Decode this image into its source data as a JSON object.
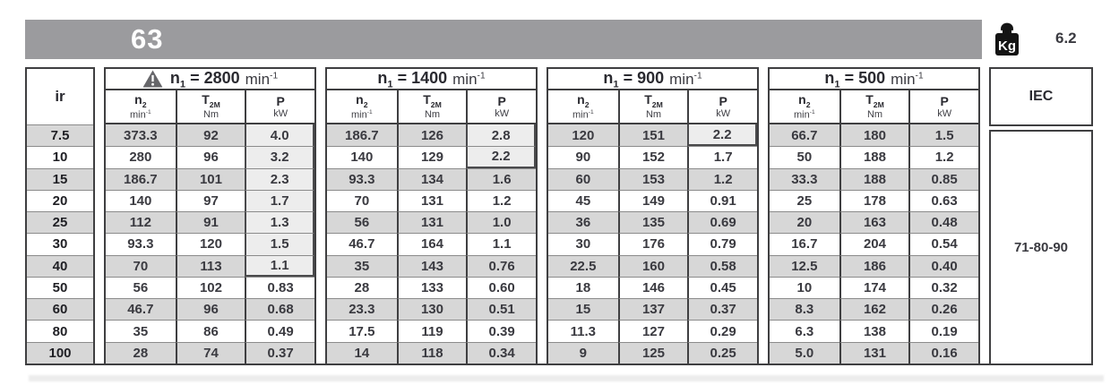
{
  "banner": {
    "size_label": "63",
    "weight_icon_label": "Kg",
    "weight_value": "6.2"
  },
  "table": {
    "ir_header": "ir",
    "ir_values": [
      "7.5",
      "10",
      "15",
      "20",
      "25",
      "30",
      "40",
      "50",
      "60",
      "80",
      "100"
    ],
    "column_headers": [
      {
        "base": "n",
        "sub": "2",
        "unit": "min",
        "unit_exp": "-1"
      },
      {
        "base": "T",
        "sub": "2M",
        "unit": "Nm",
        "unit_exp": ""
      },
      {
        "base": "P",
        "sub": "",
        "unit": "kW",
        "unit_exp": ""
      }
    ],
    "sections": [
      {
        "n1_base": "n",
        "n1_sub": "1",
        "eq": "=",
        "speed": "2800",
        "unit": "min",
        "unit_exp": "-1",
        "warning": true,
        "n2": [
          "373.3",
          "280",
          "186.7",
          "140",
          "112",
          "93.3",
          "70",
          "56",
          "46.7",
          "35",
          "28"
        ],
        "t2m": [
          "92",
          "96",
          "101",
          "97",
          "91",
          "120",
          "113",
          "102",
          "96",
          "86",
          "74"
        ],
        "p": [
          "4.0",
          "3.2",
          "2.3",
          "1.7",
          "1.3",
          "1.5",
          "1.1",
          "0.83",
          "0.68",
          "0.49",
          "0.37"
        ],
        "p_highlight_rows": 7
      },
      {
        "n1_base": "n",
        "n1_sub": "1",
        "eq": "=",
        "speed": "1400",
        "unit": "min",
        "unit_exp": "-1",
        "warning": false,
        "n2": [
          "186.7",
          "140",
          "93.3",
          "70",
          "56",
          "46.7",
          "35",
          "28",
          "23.3",
          "17.5",
          "14"
        ],
        "t2m": [
          "126",
          "129",
          "134",
          "131",
          "131",
          "164",
          "143",
          "133",
          "130",
          "119",
          "118"
        ],
        "p": [
          "2.8",
          "2.2",
          "1.6",
          "1.2",
          "1.0",
          "1.1",
          "0.76",
          "0.60",
          "0.51",
          "0.39",
          "0.34"
        ],
        "p_highlight_rows": 2
      },
      {
        "n1_base": "n",
        "n1_sub": "1",
        "eq": "=",
        "speed": "900",
        "unit": "min",
        "unit_exp": "-1",
        "warning": false,
        "n2": [
          "120",
          "90",
          "60",
          "45",
          "36",
          "30",
          "22.5",
          "18",
          "15",
          "11.3",
          "9"
        ],
        "t2m": [
          "151",
          "152",
          "153",
          "149",
          "135",
          "176",
          "160",
          "146",
          "137",
          "127",
          "125"
        ],
        "p": [
          "2.2",
          "1.7",
          "1.2",
          "0.91",
          "0.69",
          "0.79",
          "0.58",
          "0.45",
          "0.37",
          "0.29",
          "0.25"
        ],
        "p_highlight_rows": 1
      },
      {
        "n1_base": "n",
        "n1_sub": "1",
        "eq": "=",
        "speed": "500",
        "unit": "min",
        "unit_exp": "-1",
        "warning": false,
        "n2": [
          "66.7",
          "50",
          "33.3",
          "25",
          "20",
          "16.7",
          "12.5",
          "10",
          "8.3",
          "6.3",
          "5.0"
        ],
        "t2m": [
          "180",
          "188",
          "188",
          "178",
          "163",
          "204",
          "186",
          "174",
          "162",
          "138",
          "131"
        ],
        "p": [
          "1.5",
          "1.2",
          "0.85",
          "0.63",
          "0.48",
          "0.54",
          "0.40",
          "0.32",
          "0.26",
          "0.19",
          "0.16"
        ],
        "p_highlight_rows": 0
      }
    ],
    "iec_header": "IEC",
    "iec_value": "71-80-90"
  },
  "colors": {
    "banner_gray": "#9b9b9e",
    "row_shade": "#d7d7d7",
    "highlight_bg": "#ededed",
    "border_dark": "#3f3f41"
  }
}
